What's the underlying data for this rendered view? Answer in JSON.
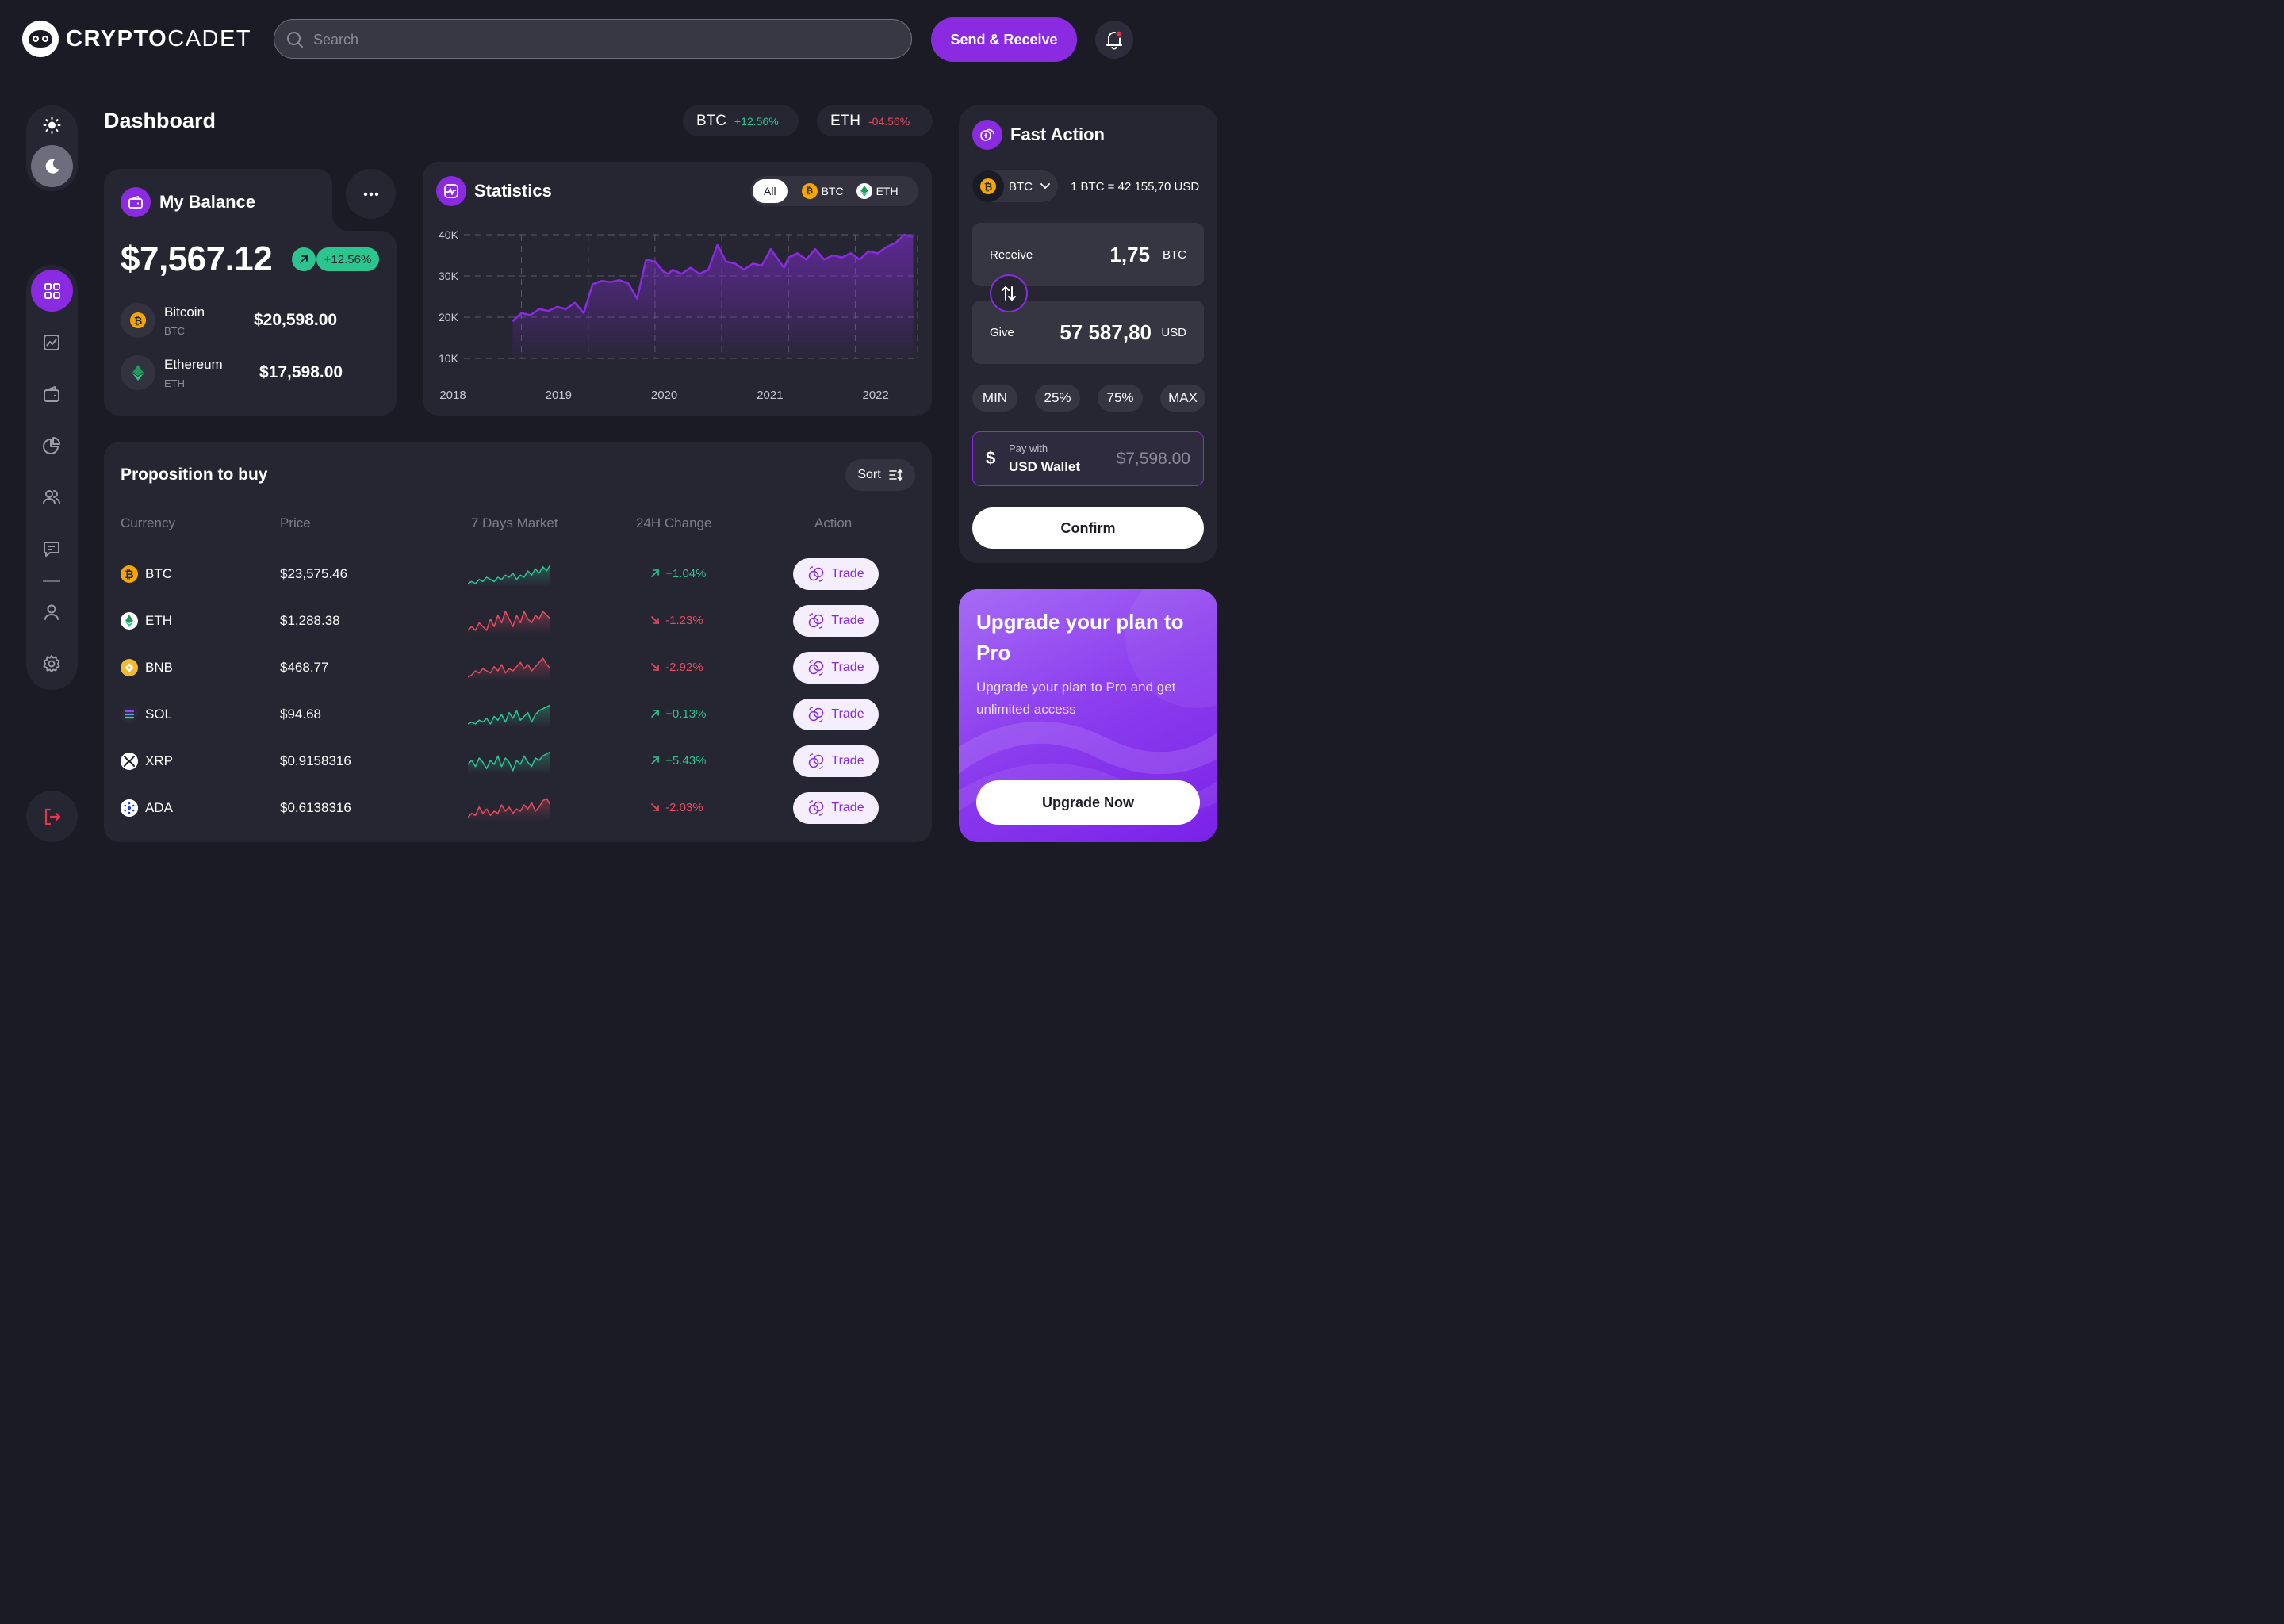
{
  "header": {
    "logo_bold": "CRYPTO",
    "logo_light": "CADET",
    "search_placeholder": "Search",
    "send_receive_label": "Send & Receive"
  },
  "dashboard": {
    "title": "Dashboard",
    "tickers": [
      {
        "symbol": "BTC",
        "change": "+12.56%",
        "color": "#2dc58f"
      },
      {
        "symbol": "ETH",
        "change": "-04.56%",
        "color": "#e84b5f"
      }
    ]
  },
  "balance": {
    "title": "My Balance",
    "total": "$7,567.12",
    "change": "+12.56%",
    "assets": [
      {
        "name": "Bitcoin",
        "symbol": "BTC",
        "value": "$20,598.00"
      },
      {
        "name": "Ethereum",
        "symbol": "ETH",
        "value": "$17,598.00"
      }
    ]
  },
  "statistics": {
    "title": "Statistics",
    "tabs": [
      "All",
      "BTC",
      "ETH"
    ],
    "active_tab": "All",
    "chart_data": {
      "type": "area",
      "x": [
        2018.0,
        2018.1,
        2018.2,
        2018.3,
        2018.4,
        2018.5,
        2018.6,
        2018.7,
        2018.8,
        2018.85,
        2018.9,
        2019.0,
        2019.1,
        2019.2,
        2019.3,
        2019.4,
        2019.5,
        2019.6,
        2019.7,
        2019.75,
        2019.8,
        2019.9,
        2020.0,
        2020.1,
        2020.2,
        2020.3,
        2020.4,
        2020.5,
        2020.6,
        2020.7,
        2020.8,
        2020.9,
        2021.0,
        2021.05,
        2021.1,
        2021.2,
        2021.3,
        2021.4,
        2021.5,
        2021.6,
        2021.7,
        2021.8,
        2021.9,
        2022.0,
        2022.1,
        2022.2,
        2022.3,
        2022.4,
        2022.5
      ],
      "y": [
        19000,
        21000,
        20500,
        22000,
        21500,
        22500,
        22000,
        23500,
        21000,
        24500,
        28000,
        28800,
        28500,
        29000,
        28200,
        24500,
        34000,
        33500,
        31000,
        30500,
        31500,
        30500,
        32000,
        30500,
        31500,
        37500,
        33500,
        33000,
        31500,
        33000,
        32500,
        36500,
        33500,
        32000,
        34500,
        35500,
        34000,
        36500,
        34000,
        35000,
        34500,
        35500,
        34000,
        36000,
        35500,
        37000,
        38000,
        40000,
        39500
      ],
      "xlabel_ticks": [
        "2018",
        "2019",
        "2020",
        "2021",
        "2022"
      ],
      "ylabel_ticks": [
        "40K",
        "30K",
        "20K",
        "10K"
      ],
      "xlim": [
        2017.73,
        2022.55
      ],
      "ylim": [
        10000,
        40000
      ],
      "grid": true,
      "line_color": "#8a2be2"
    }
  },
  "proposition": {
    "title": "Proposition to buy",
    "sort_label": "Sort",
    "columns": [
      "Currency",
      "Price",
      "7 Days Market",
      "24H Change",
      "Action"
    ],
    "trade_label": "Trade",
    "rows": [
      {
        "symbol": "BTC",
        "price": "$23,575.46",
        "change": "+1.04%",
        "up": true,
        "coin_color": "#f7a600",
        "spark": [
          3,
          4,
          3,
          5,
          4,
          6,
          5,
          4,
          6,
          5,
          7,
          6,
          8,
          5,
          7,
          6,
          9,
          7,
          10,
          8,
          11,
          9,
          12
        ]
      },
      {
        "symbol": "ETH",
        "price": "$1,288.38",
        "change": "-1.23%",
        "up": false,
        "coin_color": "#ffffff",
        "spark": [
          4,
          5,
          4,
          6,
          5,
          4,
          7,
          5,
          8,
          6,
          9,
          7,
          5,
          8,
          6,
          9,
          7,
          6,
          8,
          7,
          9,
          8,
          7
        ]
      },
      {
        "symbol": "BNB",
        "price": "$468.77",
        "change": "-2.92%",
        "up": false,
        "coin_color": "#f3ba2f",
        "spark": [
          3,
          4,
          6,
          5,
          7,
          6,
          5,
          8,
          6,
          9,
          5,
          7,
          6,
          8,
          10,
          7,
          9,
          6,
          8,
          10,
          12,
          9,
          7
        ]
      },
      {
        "symbol": "SOL",
        "price": "$94.68",
        "change": "+0.13%",
        "up": true,
        "coin_color": "#2a2a38",
        "spark": [
          3,
          4,
          3,
          5,
          4,
          6,
          3,
          7,
          5,
          8,
          4,
          9,
          6,
          10,
          5,
          7,
          9,
          4,
          8,
          10,
          11,
          12,
          13
        ]
      },
      {
        "symbol": "XRP",
        "price": "$0.9158316",
        "change": "+5.43%",
        "up": true,
        "coin_color": "#ffffff",
        "spark": [
          6,
          8,
          5,
          9,
          7,
          4,
          8,
          6,
          10,
          5,
          9,
          7,
          3,
          8,
          6,
          10,
          7,
          5,
          9,
          8,
          10,
          11,
          12
        ]
      },
      {
        "symbol": "ADA",
        "price": "$0.6138316",
        "change": "-2.03%",
        "up": false,
        "coin_color": "#ffffff",
        "spark": [
          3,
          5,
          4,
          8,
          5,
          7,
          4,
          6,
          5,
          9,
          6,
          8,
          5,
          7,
          6,
          9,
          7,
          10,
          6,
          8,
          11,
          12,
          9
        ]
      }
    ]
  },
  "fast_action": {
    "title": "Fast Action",
    "currency": "BTC",
    "rate": "1 BTC = 42 155,70 USD",
    "receive_label": "Receive",
    "receive_value": "1,75",
    "receive_unit": "BTC",
    "give_label": "Give",
    "give_value": "57 587,80",
    "give_unit": "USD",
    "presets": [
      "MIN",
      "25%",
      "75%",
      "MAX"
    ],
    "pay_with_label": "Pay with",
    "wallet": "USD Wallet",
    "wallet_value": "$7,598.00",
    "confirm_label": "Confirm"
  },
  "upgrade": {
    "title": "Upgrade your plan to Pro",
    "description": "Upgrade your plan to Pro and get unlimited access",
    "button": "Upgrade Now"
  },
  "colors": {
    "accent": "#8a2be2",
    "background": "#1b1b26",
    "card": "#262633",
    "positive": "#2dc58f",
    "negative": "#e84b5f"
  }
}
